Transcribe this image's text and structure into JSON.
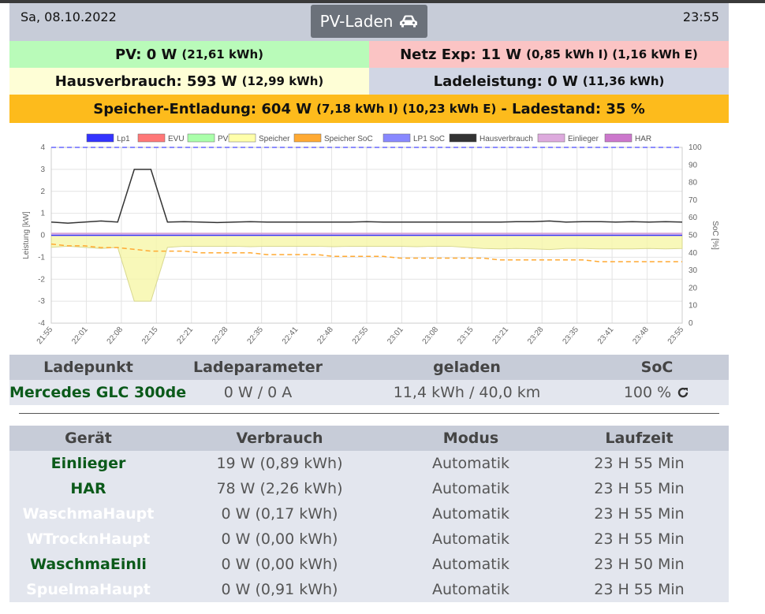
{
  "header": {
    "date": "Sa, 08.10.2022",
    "time": "23:55",
    "mode_label": "PV-Laden",
    "mode_icon": "car-icon"
  },
  "summary": {
    "pv": {
      "label": "PV: 0 W",
      "detail": "(21,61 kWh)",
      "color": "#b9fbb9"
    },
    "netz": {
      "label": "Netz Exp: 11 W",
      "detail": "(0,85 kWh I) (1,16 kWh E)",
      "color": "#fbc4c4"
    },
    "haus": {
      "label": "Hausverbrauch: 593 W",
      "detail": "(12,99 kWh)",
      "color": "#fefed6"
    },
    "lade": {
      "label": "Ladeleistung: 0 W",
      "detail": "(11,36 kWh)",
      "color": "#d1d6e4"
    },
    "speicher": {
      "label": "Speicher-Entladung: 604 W",
      "detail": "(7,18 kWh I) (10,23 kWh E)",
      "suffix": "- Ladestand: 35 %",
      "color": "#fdbb1c"
    }
  },
  "chart_data": {
    "type": "line",
    "legend": [
      "Lp1",
      "EVU",
      "PV",
      "Speicher",
      "Speicher SoC",
      "LP1 SoC",
      "Hausverbrauch",
      "Einlieger",
      "HAR"
    ],
    "legend_colors": [
      "#3333ff",
      "#ff7777",
      "#aaffaa",
      "#ffffaa",
      "#ffaa33",
      "#8888ff",
      "#333333",
      "#ddaadd",
      "#cc77cc"
    ],
    "ylabel": "Leistung [kW]",
    "y2label": "SoC [%]",
    "ylim": [
      -4,
      4
    ],
    "y2lim": [
      0,
      100
    ],
    "yticks": [
      "4",
      "3",
      "2",
      "1",
      "0",
      "-1",
      "-2",
      "-3",
      "-4"
    ],
    "y2ticks": [
      "100",
      "90",
      "80",
      "70",
      "60",
      "50",
      "40",
      "30",
      "20",
      "10",
      "0"
    ],
    "xticks": [
      "21:55",
      "22:01",
      "22:08",
      "22:15",
      "22:21",
      "22:28",
      "22:35",
      "22:41",
      "22:48",
      "22:55",
      "23:01",
      "23:08",
      "23:15",
      "23:21",
      "23:28",
      "23:35",
      "23:41",
      "23:48",
      "23:55"
    ],
    "series": [
      {
        "name": "Hausverbrauch",
        "color": "#333333",
        "values": [
          0.6,
          0.55,
          0.6,
          0.65,
          0.6,
          3.0,
          3.0,
          0.6,
          0.62,
          0.6,
          0.58,
          0.6,
          0.62,
          0.6,
          0.6,
          0.6,
          0.6,
          0.6,
          0.6,
          0.62,
          0.6,
          0.6,
          0.6,
          0.6,
          0.6,
          0.6,
          0.6,
          0.6,
          0.62,
          0.62,
          0.65,
          0.6,
          0.62,
          0.62,
          0.6,
          0.62,
          0.6,
          0.62,
          0.6
        ]
      },
      {
        "name": "Speicher",
        "color": "#d8d890",
        "values": [
          -0.55,
          -0.5,
          -0.55,
          -0.6,
          -0.55,
          -3.0,
          -3.0,
          -0.55,
          -0.5,
          -0.5,
          -0.5,
          -0.5,
          -0.52,
          -0.5,
          -0.5,
          -0.5,
          -0.5,
          -0.52,
          -0.5,
          -0.5,
          -0.5,
          -0.5,
          -0.52,
          -0.5,
          -0.5,
          -0.55,
          -0.6,
          -0.62,
          -0.6,
          -0.62,
          -0.65,
          -0.6,
          -0.6,
          -0.62,
          -0.62,
          -0.62,
          -0.6,
          -0.62,
          -0.6
        ]
      },
      {
        "name": "Speicher SoC",
        "color": "#ffaa33",
        "values": [
          45,
          44,
          44,
          43,
          43,
          42,
          41,
          41,
          41,
          40,
          40,
          40,
          40,
          39,
          39,
          39,
          39,
          38,
          38,
          38,
          38,
          37,
          37,
          37,
          37,
          37,
          37,
          36,
          36,
          36,
          36,
          36,
          36,
          35,
          35,
          35,
          35,
          35,
          35
        ]
      },
      {
        "name": "LP1 SoC",
        "color": "#6666ff",
        "values": [
          100,
          100,
          100,
          100,
          100,
          100,
          100,
          100,
          100,
          100,
          100,
          100,
          100,
          100,
          100,
          100,
          100,
          100,
          100,
          100,
          100,
          100,
          100,
          100,
          100,
          100,
          100,
          100,
          100,
          100,
          100,
          100,
          100,
          100,
          100,
          100,
          100,
          100,
          100
        ]
      }
    ]
  },
  "ladepunkt_table": {
    "headers": [
      "Ladepunkt",
      "Ladeparameter",
      "geladen",
      "SoC"
    ],
    "rows": [
      {
        "name": "Mercedes GLC 300de",
        "param": "0 W / 0 A",
        "geladen": "11,4 kWh / 40,0 km",
        "soc": "100 %"
      }
    ]
  },
  "geraete_table": {
    "headers": [
      "Gerät",
      "Verbrauch",
      "Modus",
      "Laufzeit"
    ],
    "rows": [
      {
        "name": "Einlieger",
        "verbrauch": "19 W (0,89 kWh)",
        "modus": "Automatik",
        "laufzeit": "23 H 55 Min",
        "active": true
      },
      {
        "name": "HAR",
        "verbrauch": "78 W (2,26 kWh)",
        "modus": "Automatik",
        "laufzeit": "23 H 55 Min",
        "active": true
      },
      {
        "name": "WaschmaHaupt",
        "verbrauch": "0 W (0,17 kWh)",
        "modus": "Automatik",
        "laufzeit": "23 H 55 Min",
        "active": false
      },
      {
        "name": "WTrocknHaupt",
        "verbrauch": "0 W (0,00 kWh)",
        "modus": "Automatik",
        "laufzeit": "23 H 55 Min",
        "active": false
      },
      {
        "name": "WaschmaEinli",
        "verbrauch": "0 W (0,00 kWh)",
        "modus": "Automatik",
        "laufzeit": "23 H 50 Min",
        "active": true
      },
      {
        "name": "SpuelmaHaupt",
        "verbrauch": "0 W (0,91 kWh)",
        "modus": "Automatik",
        "laufzeit": "23 H 55 Min",
        "active": false
      }
    ]
  }
}
